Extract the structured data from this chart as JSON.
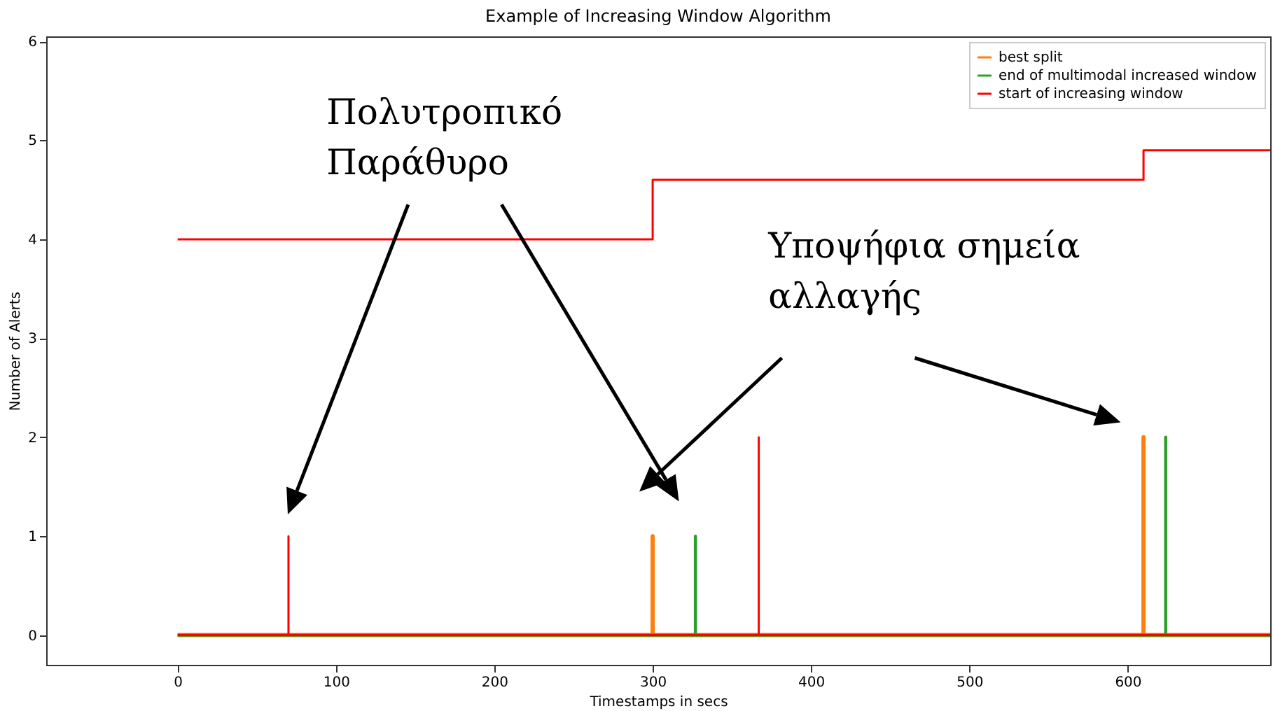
{
  "chart_data": {
    "type": "line",
    "title": "Example of Increasing Window Algorithm",
    "xlabel": "Timestamps in secs",
    "ylabel": "Number of Alerts",
    "series": [
      {
        "name": "best split",
        "color": "#ff7f0e",
        "x": [
          0,
          300,
          300,
          300,
          610,
          610,
          610,
          690
        ],
        "values": [
          0,
          0,
          1,
          0,
          0,
          2,
          0,
          0
        ]
      },
      {
        "name": "end of multimodal increased window",
        "color": "#2ca02c",
        "x": [
          0,
          327,
          327,
          327,
          624,
          624,
          624,
          690
        ],
        "values": [
          0,
          0,
          1,
          0,
          0,
          2,
          0,
          0
        ]
      },
      {
        "name": "start of increasing window",
        "color": "#ff0000",
        "x": [
          0,
          70,
          70,
          70,
          367,
          367,
          367,
          690
        ],
        "values": [
          0,
          0,
          1,
          0,
          0,
          2,
          0,
          0
        ]
      },
      {
        "color": "#ff0000",
        "x": [
          0,
          300,
          300,
          610,
          610,
          690
        ],
        "values": [
          4,
          4,
          4.6,
          4.6,
          4.9,
          4.9
        ]
      }
    ],
    "xlim": [
      -83,
      690
    ],
    "xticks": [
      0,
      100,
      200,
      300,
      400,
      500,
      600
    ],
    "ylim": [
      -0.3,
      6.05
    ],
    "yticks": [
      0,
      1,
      2,
      3,
      4,
      5,
      6
    ],
    "grid": false,
    "legend": "top right",
    "annotations": [
      "Πολυτροπικό\nΠαράθυρο",
      "Υποψήφια σημεία\nαλλαγής"
    ]
  }
}
